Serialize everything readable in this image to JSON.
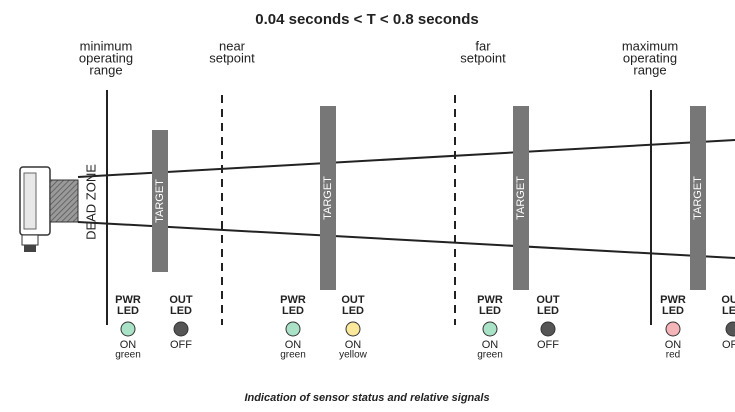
{
  "title": "0.04 seconds < T < 0.8 seconds",
  "zones": [
    {
      "label": [
        "minimum",
        "operating",
        "range"
      ]
    },
    {
      "label": [
        "near",
        "setpoint"
      ]
    },
    {
      "label": [
        "far",
        "setpoint"
      ]
    },
    {
      "label": [
        "maximum",
        "operating",
        "range"
      ]
    }
  ],
  "dead_zone": "DEAD ZONE",
  "targets": [
    "TARGET",
    "TARGET",
    "TARGET",
    "TARGET"
  ],
  "leds": [
    {
      "name": [
        "PWR",
        "LED"
      ],
      "state": [
        "ON",
        "green"
      ],
      "color": "#a9e2c6"
    },
    {
      "name": [
        "OUT",
        "LED"
      ],
      "state": [
        "OFF"
      ],
      "color": "#555555"
    },
    {
      "name": [
        "PWR",
        "LED"
      ],
      "state": [
        "ON",
        "green"
      ],
      "color": "#a9e2c6"
    },
    {
      "name": [
        "OUT",
        "LED"
      ],
      "state": [
        "ON",
        "yellow"
      ],
      "color": "#fbe89a"
    },
    {
      "name": [
        "PWR",
        "LED"
      ],
      "state": [
        "ON",
        "green"
      ],
      "color": "#a9e2c6"
    },
    {
      "name": [
        "OUT",
        "LED"
      ],
      "state": [
        "OFF"
      ],
      "color": "#555555"
    },
    {
      "name": [
        "PWR",
        "LED"
      ],
      "state": [
        "ON",
        "red"
      ],
      "color": "#f4b4b8"
    },
    {
      "name": [
        "OUT",
        "LED"
      ],
      "state": [
        "OFF"
      ],
      "color": "#555555"
    }
  ],
  "caption": "Indication of sensor status and relative signals"
}
